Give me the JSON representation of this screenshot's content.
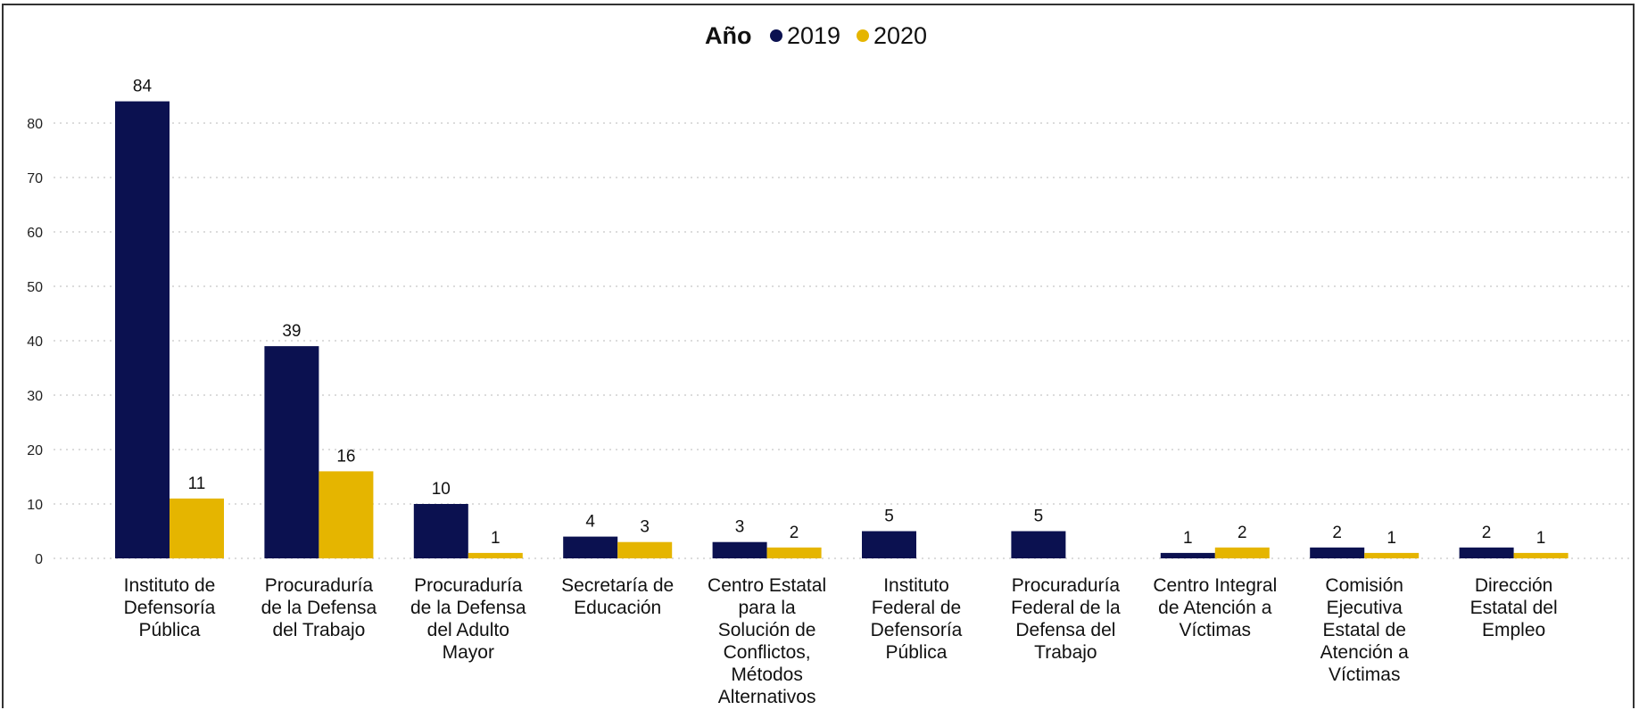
{
  "chart_data": {
    "type": "bar",
    "legend_title": "Año",
    "legend_position": "top-center",
    "categories": [
      "Instituto de Defensoría Pública",
      "Procuraduría de la Defensa del Trabajo",
      "Procuraduría de la Defensa del Adulto Mayor",
      "Secretaría de Educación",
      "Centro Estatal para la Solución de Conflictos, Métodos Alternativos",
      "Instituto Federal de Defensoría Pública",
      "Procuraduría Federal de la Defensa del Trabajo",
      "Centro Integral de Atención a Víctimas",
      "Comisión Ejecutiva Estatal de Atención a Víctimas",
      "Dirección Estatal del Empleo"
    ],
    "category_lines": [
      [
        "Instituto de",
        "Defensoría",
        "Pública"
      ],
      [
        "Procuraduría",
        "de la Defensa",
        "del Trabajo"
      ],
      [
        "Procuraduría",
        "de la Defensa",
        "del Adulto",
        "Mayor"
      ],
      [
        "Secretaría de",
        "Educación"
      ],
      [
        "Centro Estatal",
        "para la",
        "Solución de",
        "Conflictos,",
        "Métodos",
        "Alternativos"
      ],
      [
        "Instituto",
        "Federal de",
        "Defensoría",
        "Pública"
      ],
      [
        "Procuraduría",
        "Federal de la",
        "Defensa del",
        "Trabajo"
      ],
      [
        "Centro Integral",
        "de Atención a",
        "Víctimas"
      ],
      [
        "Comisión",
        "Ejecutiva",
        "Estatal de",
        "Atención a",
        "Víctimas"
      ],
      [
        "Dirección",
        "Estatal del",
        "Empleo"
      ]
    ],
    "series": [
      {
        "name": "2019",
        "color": "#0b1150",
        "values": [
          84,
          39,
          10,
          4,
          3,
          5,
          5,
          1,
          2,
          2
        ]
      },
      {
        "name": "2020",
        "color": "#e5b500",
        "values": [
          11,
          16,
          1,
          3,
          2,
          null,
          null,
          2,
          1,
          1
        ]
      }
    ],
    "yticks": [
      0,
      10,
      20,
      30,
      40,
      50,
      60,
      70,
      80
    ],
    "ylim": [
      0,
      88
    ],
    "grid": true
  }
}
